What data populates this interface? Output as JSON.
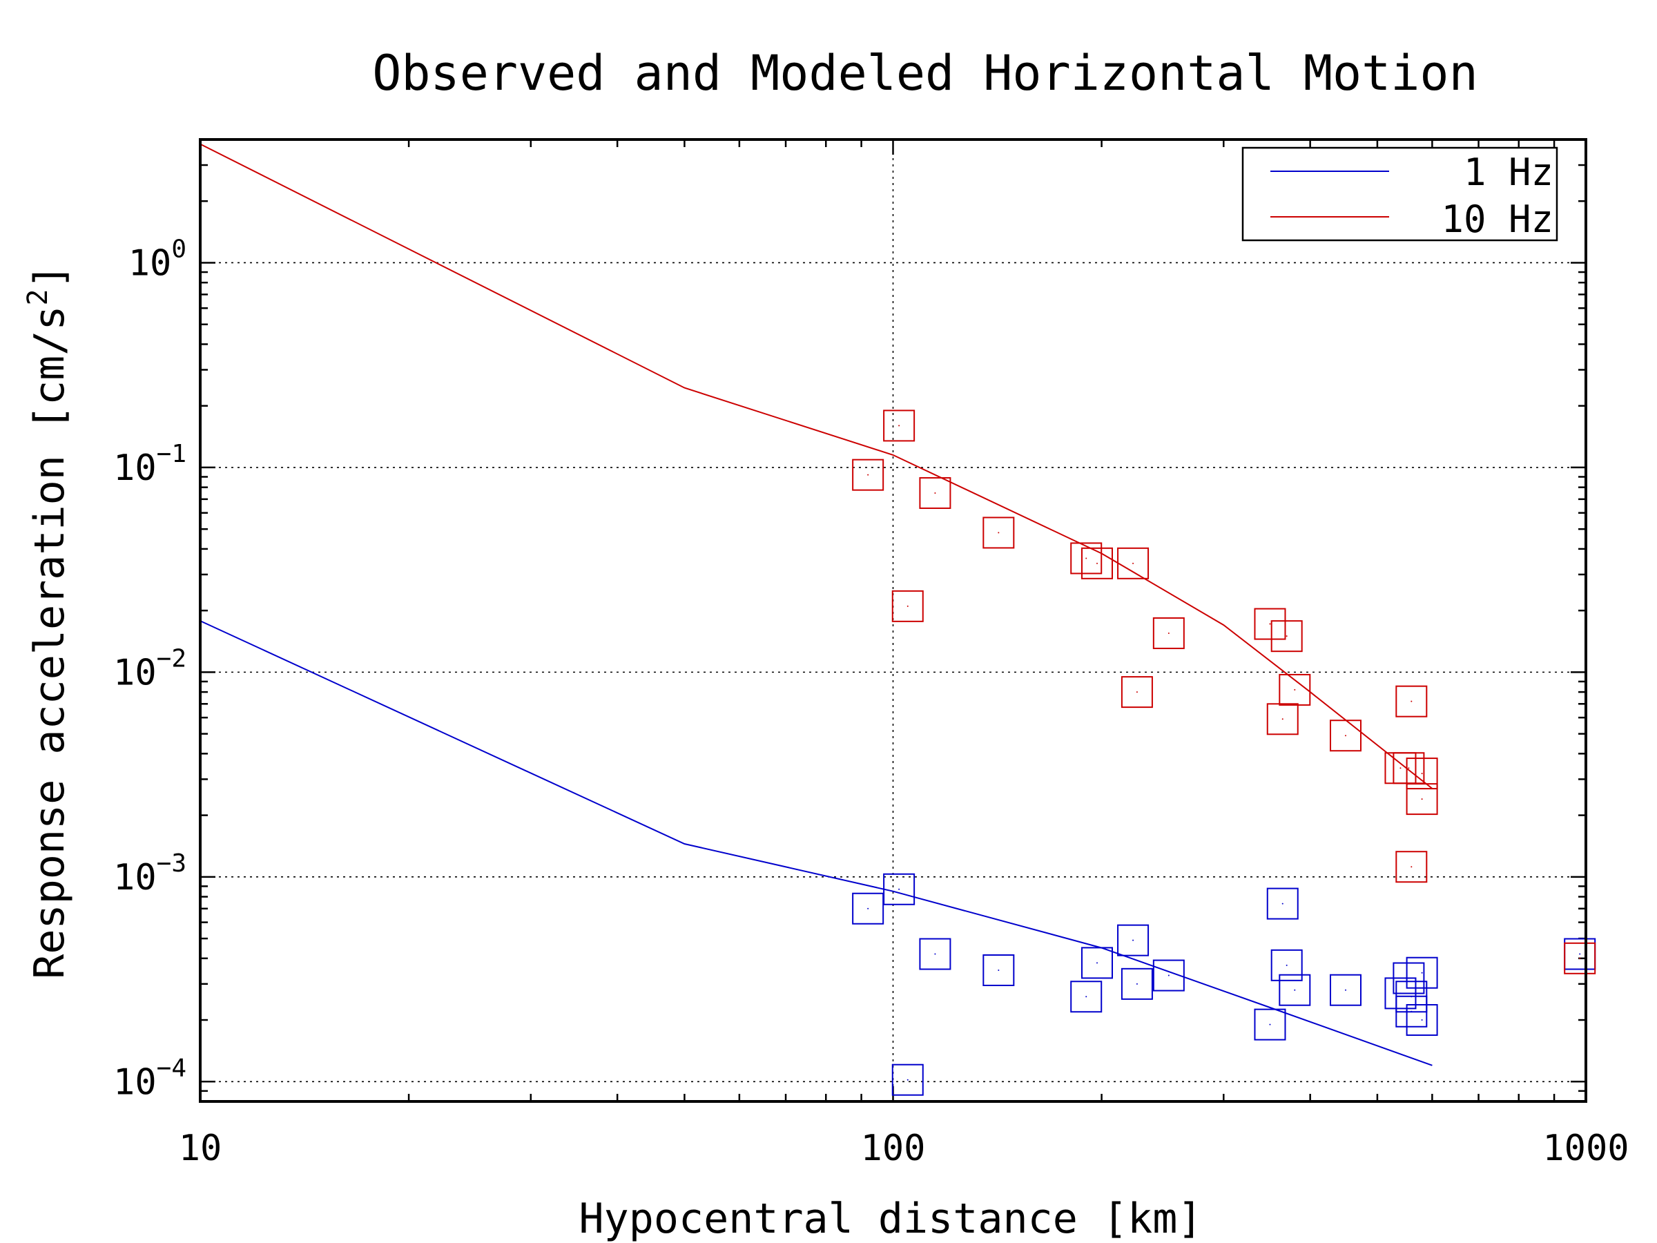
{
  "chart_data": {
    "type": "line",
    "title": "Observed and Modeled Horizontal Motion",
    "xlabel": "Hypocentral distance [km]",
    "ylabel_main": "Response acceleration [cm/s",
    "ylabel_sup": "2",
    "ylabel_end": "]",
    "x_scale": "log",
    "y_scale": "log",
    "xlim": [
      10,
      1000
    ],
    "ylim": [
      8e-05,
      4
    ],
    "x_ticks": [
      {
        "value": 10,
        "label": "10"
      },
      {
        "value": 100,
        "label": "100"
      },
      {
        "value": 1000,
        "label": "1000"
      }
    ],
    "y_ticks": [
      {
        "value": 0.0001,
        "base": "10",
        "exp": "−4"
      },
      {
        "value": 0.001,
        "base": "10",
        "exp": "−3"
      },
      {
        "value": 0.01,
        "base": "10",
        "exp": "−2"
      },
      {
        "value": 0.1,
        "base": "10",
        "exp": "−1"
      },
      {
        "value": 1,
        "base": "10",
        "exp": "0"
      }
    ],
    "grid": true,
    "legend_position": "top-right",
    "series": [
      {
        "name": "1 Hz",
        "color": "#0000cc",
        "model_line": [
          [
            10,
            0.0178
          ],
          [
            50,
            0.00145
          ],
          [
            100,
            0.00085
          ],
          [
            200,
            0.00045
          ],
          [
            350,
            0.00023
          ],
          [
            600,
            0.00012
          ]
        ],
        "observed": [
          [
            92,
            0.0007
          ],
          [
            102,
            0.00087
          ],
          [
            115,
            0.00042
          ],
          [
            142,
            0.00035
          ],
          [
            190,
            0.00026
          ],
          [
            197,
            0.00038
          ],
          [
            222,
            0.00049
          ],
          [
            225,
            0.0003
          ],
          [
            250,
            0.00033
          ],
          [
            350,
            0.00019
          ],
          [
            365,
            0.00074
          ],
          [
            370,
            0.00037
          ],
          [
            380,
            0.00028
          ],
          [
            450,
            0.00028
          ],
          [
            540,
            0.00027
          ],
          [
            555,
            0.00032
          ],
          [
            560,
            0.00026
          ],
          [
            560,
            0.00022
          ],
          [
            580,
            0.00034
          ],
          [
            580,
            0.0002
          ],
          [
            105,
            0.000102
          ],
          [
            980,
            0.00042
          ]
        ]
      },
      {
        "name": "10 Hz",
        "color": "#cc0000",
        "model_line": [
          [
            10,
            3.8
          ],
          [
            50,
            0.245
          ],
          [
            100,
            0.115
          ],
          [
            200,
            0.038
          ],
          [
            300,
            0.017
          ],
          [
            400,
            0.008
          ],
          [
            600,
            0.0027
          ]
        ],
        "observed": [
          [
            92,
            0.092
          ],
          [
            102,
            0.16
          ],
          [
            115,
            0.075
          ],
          [
            142,
            0.048
          ],
          [
            190,
            0.036
          ],
          [
            197,
            0.034
          ],
          [
            222,
            0.034
          ],
          [
            225,
            0.008
          ],
          [
            250,
            0.0155
          ],
          [
            350,
            0.0172
          ],
          [
            365,
            0.0059
          ],
          [
            370,
            0.015
          ],
          [
            380,
            0.0082
          ],
          [
            450,
            0.0049
          ],
          [
            540,
            0.0034
          ],
          [
            555,
            0.0034
          ],
          [
            560,
            0.0072
          ],
          [
            560,
            0.00112
          ],
          [
            580,
            0.0032
          ],
          [
            580,
            0.0024
          ],
          [
            105,
            0.021
          ],
          [
            980,
            0.0004
          ]
        ]
      }
    ]
  }
}
